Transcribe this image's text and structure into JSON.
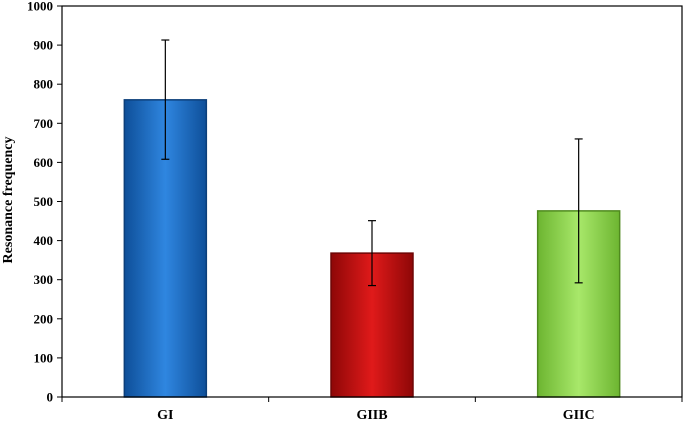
{
  "chart_data": {
    "type": "bar",
    "title": "",
    "xlabel": "",
    "ylabel": "Resonance frequency",
    "ylim": [
      0,
      1000
    ],
    "yticks": [
      0,
      100,
      200,
      300,
      400,
      500,
      600,
      700,
      800,
      900,
      1000
    ],
    "grid": false,
    "legend": "none",
    "categories": [
      "GI",
      "GIIB",
      "GIIC"
    ],
    "values": [
      760,
      368,
      476
    ],
    "error_low": [
      608,
      285,
      292
    ],
    "error_high": [
      913,
      451,
      660
    ],
    "colors": [
      "#1f6fc4",
      "#c40c0c",
      "#8fd24c"
    ],
    "edge_colors": [
      "#0c3f7a",
      "#6e0606",
      "#4f8a1e"
    ]
  }
}
